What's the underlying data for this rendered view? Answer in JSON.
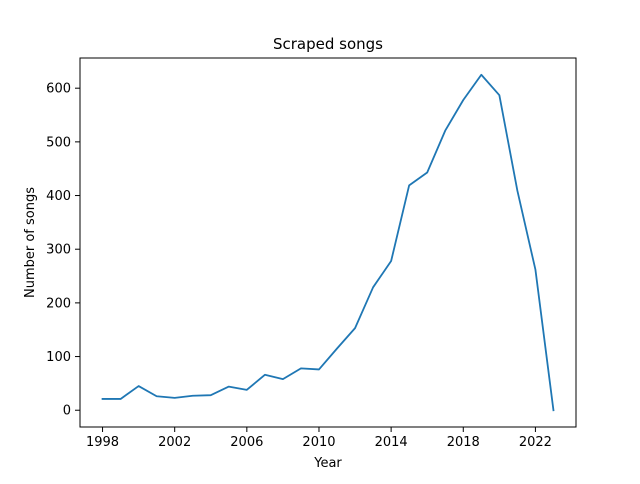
{
  "chart_data": {
    "type": "line",
    "title": "Scraped songs",
    "xlabel": "Year",
    "ylabel": "Number of songs",
    "xlim": [
      1996.75,
      2024.25
    ],
    "ylim": [
      -31.25,
      656.25
    ],
    "xticks": [
      1998,
      2002,
      2006,
      2010,
      2014,
      2018,
      2022
    ],
    "yticks": [
      0,
      100,
      200,
      300,
      400,
      500,
      600
    ],
    "xtick_labels": [
      "1998",
      "2002",
      "2006",
      "2010",
      "2014",
      "2018",
      "2022"
    ],
    "ytick_labels": [
      "0",
      "100",
      "200",
      "300",
      "400",
      "500",
      "600"
    ],
    "grid": false,
    "line_color": "#1f77b4",
    "series": [
      {
        "x": [
          1998,
          1999,
          2000,
          2001,
          2002,
          2003,
          2004,
          2005,
          2006,
          2007,
          2008,
          2009,
          2010,
          2011,
          2012,
          2013,
          2014,
          2015,
          2016,
          2017,
          2018,
          2019,
          2020,
          2021,
          2022,
          2023
        ],
        "values": [
          21,
          21,
          45,
          26,
          23,
          27,
          28,
          44,
          38,
          66,
          58,
          78,
          76,
          115,
          153,
          229,
          278,
          419,
          443,
          521,
          578,
          625,
          587,
          409,
          262,
          0
        ]
      }
    ]
  }
}
